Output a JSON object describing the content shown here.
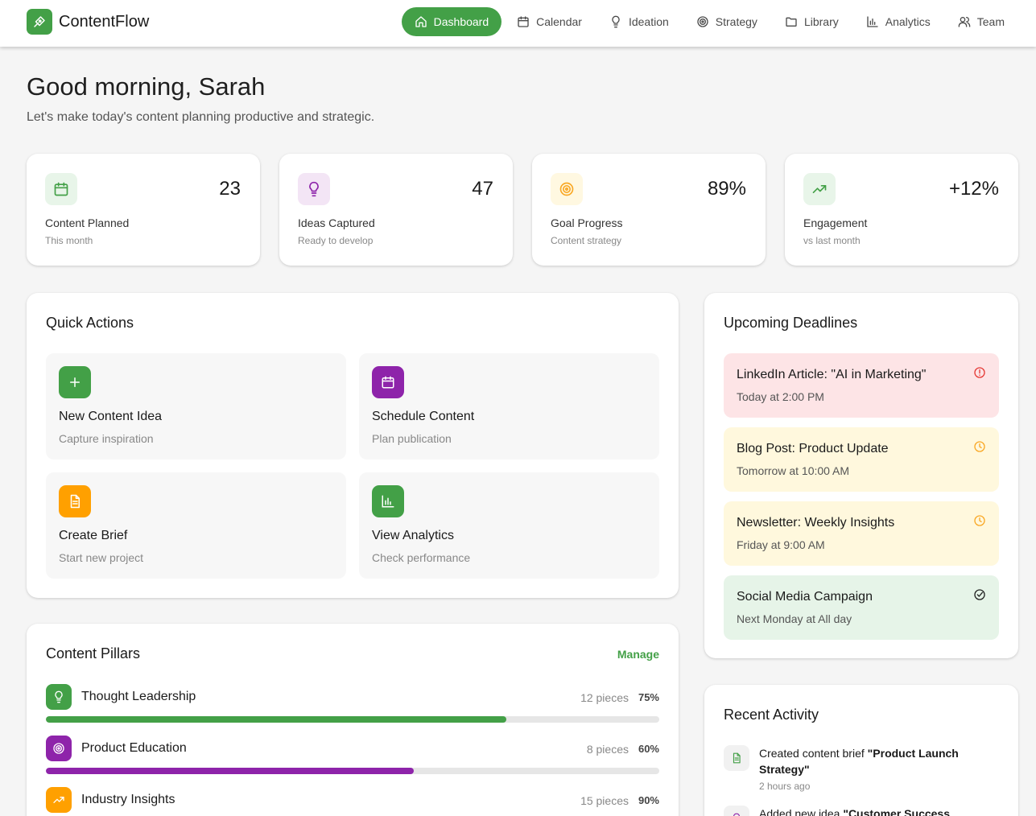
{
  "app": {
    "name": "ContentFlow"
  },
  "nav": [
    {
      "label": "Dashboard",
      "icon": "home-icon",
      "active": true
    },
    {
      "label": "Calendar",
      "icon": "calendar-icon"
    },
    {
      "label": "Ideation",
      "icon": "lightbulb-icon"
    },
    {
      "label": "Strategy",
      "icon": "target-icon"
    },
    {
      "label": "Library",
      "icon": "folder-icon"
    },
    {
      "label": "Analytics",
      "icon": "bar-chart-icon"
    },
    {
      "label": "Team",
      "icon": "users-icon"
    }
  ],
  "greeting": {
    "title": "Good morning, Sarah",
    "subtitle": "Let's make today's content planning productive and strategic."
  },
  "stats": [
    {
      "value": "23",
      "label": "Content Planned",
      "sub": "This month",
      "icon": "calendar-icon",
      "color": "#43a047",
      "bg": "#e8f5e9"
    },
    {
      "value": "47",
      "label": "Ideas Captured",
      "sub": "Ready to develop",
      "icon": "lightbulb-icon",
      "color": "#8e24aa",
      "bg": "#f3e5f5"
    },
    {
      "value": "89%",
      "label": "Goal Progress",
      "sub": "Content strategy",
      "icon": "target-icon",
      "color": "#f9a825",
      "bg": "#fff8e1"
    },
    {
      "value": "+12%",
      "label": "Engagement",
      "sub": "vs last month",
      "icon": "trending-up-icon",
      "color": "#43a047",
      "bg": "#e8f5e9"
    }
  ],
  "quick_actions": {
    "title": "Quick Actions",
    "items": [
      {
        "title": "New Content Idea",
        "sub": "Capture inspiration",
        "icon": "plus-icon",
        "color": "#43a047"
      },
      {
        "title": "Schedule Content",
        "sub": "Plan publication",
        "icon": "calendar-icon",
        "color": "#8e24aa"
      },
      {
        "title": "Create Brief",
        "sub": "Start new project",
        "icon": "document-icon",
        "color": "#ffa000"
      },
      {
        "title": "View Analytics",
        "sub": "Check performance",
        "icon": "bar-chart-icon",
        "color": "#43a047"
      }
    ]
  },
  "deadlines": {
    "title": "Upcoming Deadlines",
    "items": [
      {
        "title": "LinkedIn Article: \"AI in Marketing\"",
        "time": "Today at 2:00 PM",
        "bg": "#fde4e6",
        "icon": "alert-circle-icon",
        "icon_color": "#e53935"
      },
      {
        "title": "Blog Post: Product Update",
        "time": "Tomorrow at 10:00 AM",
        "bg": "#fff8dd",
        "icon": "clock-icon",
        "icon_color": "#f9a825"
      },
      {
        "title": "Newsletter: Weekly Insights",
        "time": "Friday at 9:00 AM",
        "bg": "#fff8dd",
        "icon": "clock-icon",
        "icon_color": "#f9a825"
      },
      {
        "title": "Social Media Campaign",
        "time": "Next Monday at All day",
        "bg": "#e6f4e8",
        "icon": "check-circle-icon",
        "icon_color": "#222222"
      }
    ]
  },
  "pillars": {
    "title": "Content Pillars",
    "manage_label": "Manage",
    "items": [
      {
        "name": "Thought Leadership",
        "count": "12 pieces",
        "pct_label": "75%",
        "progress": 0.75,
        "icon": "lightbulb-icon",
        "color": "#43a047"
      },
      {
        "name": "Product Education",
        "count": "8 pieces",
        "pct_label": "60%",
        "progress": 0.6,
        "icon": "target-icon",
        "color": "#8e24aa"
      },
      {
        "name": "Industry Insights",
        "count": "15 pieces",
        "pct_label": "90%",
        "progress": 0.9,
        "icon": "trending-up-icon",
        "color": "#ffa000"
      }
    ]
  },
  "activity": {
    "title": "Recent Activity",
    "items": [
      {
        "text_before": "Created content brief ",
        "highlight": "\"Product Launch Strategy\"",
        "time": "2 hours ago",
        "icon": "document-icon",
        "icon_color": "#43a047"
      },
      {
        "text_before": "Added new idea ",
        "highlight": "\"Customer Success Stories\"",
        "time": "",
        "icon": "lightbulb-icon",
        "icon_color": "#8e24aa"
      }
    ]
  }
}
